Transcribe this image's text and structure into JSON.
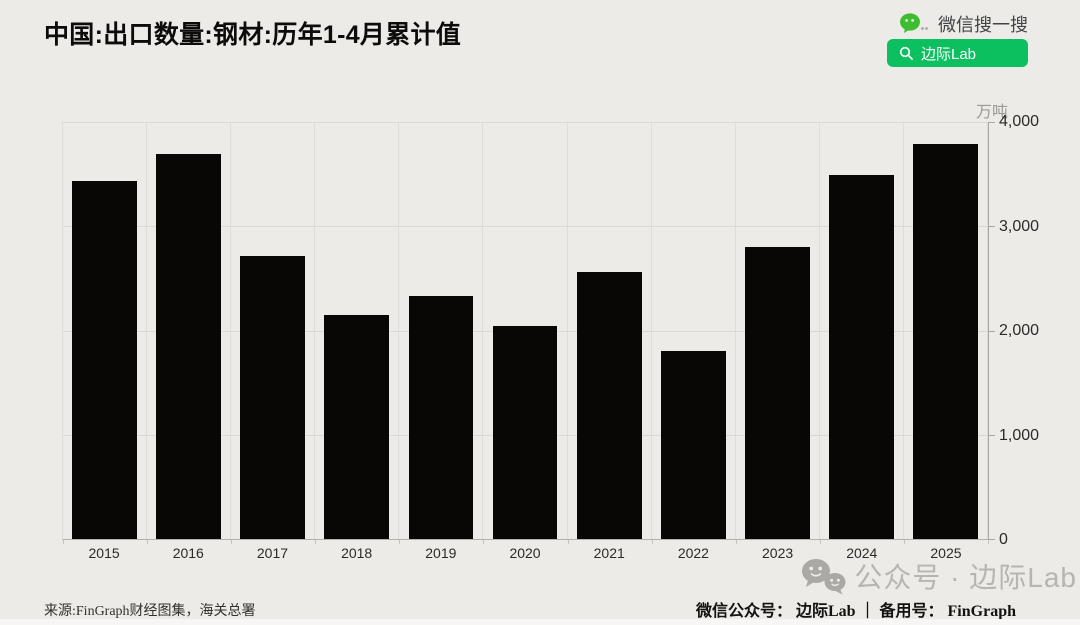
{
  "header": {
    "title": "中国:出口数量:钢材:历年1-4月累计值",
    "wechat_search_label": "微信搜一搜",
    "account_button_label": "边际Lab",
    "wechat_green": "#0CBF5F"
  },
  "chart_data": {
    "type": "bar",
    "title": "中国:出口数量:钢材:历年1-4月累计值",
    "unit": "万吨",
    "categories": [
      "2015",
      "2016",
      "2017",
      "2018",
      "2019",
      "2020",
      "2021",
      "2022",
      "2023",
      "2024",
      "2025"
    ],
    "values": [
      3430,
      3690,
      2715,
      2150,
      2330,
      2045,
      2560,
      1805,
      2800,
      3490,
      3790
    ],
    "ylim": [
      0,
      4000
    ],
    "yticks": [
      "4,000",
      "3,000",
      "2,000",
      "1,000",
      "0"
    ],
    "bar_color": "#080706",
    "grid": true,
    "axis_side": "right",
    "legend": "none"
  },
  "watermark": {
    "label": "公众号 · 边际Lab"
  },
  "footer": {
    "source": "来源:FinGraph财经图集，海关总署",
    "accounts": "微信公众号： 边际Lab ｜ 备用号： FinGraph"
  }
}
